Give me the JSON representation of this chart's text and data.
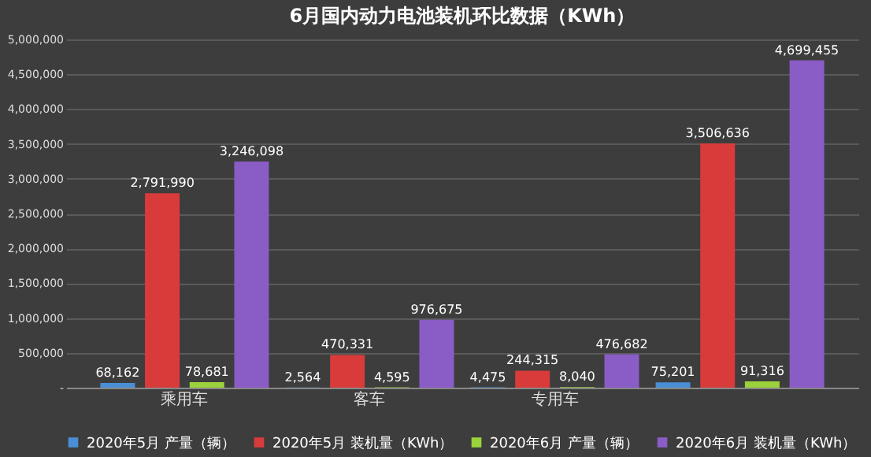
{
  "chart_data": {
    "type": "bar",
    "title": "6月国内动力电池装机环比数据（KWh）",
    "categories": [
      "乘用车",
      "客车",
      "专用车",
      null
    ],
    "series": [
      {
        "name": "2020年5月 产量（辆）",
        "color": "#4a8fd6",
        "values": [
          68162,
          2564,
          4475,
          75201
        ],
        "value_labels": [
          "68,162",
          "2,564",
          "4,475",
          "75,201"
        ]
      },
      {
        "name": "2020年5月 装机量（KWh）",
        "color": "#d93b3b",
        "values": [
          2791990,
          470331,
          244315,
          3506636
        ],
        "value_labels": [
          "2,791,990",
          "470,331",
          "244,315",
          "3,506,636"
        ]
      },
      {
        "name": "2020年6月 产量（辆）",
        "color": "#9bd23c",
        "values": [
          78681,
          4595,
          8040,
          91316
        ],
        "value_labels": [
          "78,681",
          "4,595",
          "8,040",
          "91,316"
        ]
      },
      {
        "name": "2020年6月 装机量（KWh）",
        "color": "#8a5cc6",
        "values": [
          3246098,
          976675,
          476682,
          4699455
        ],
        "value_labels": [
          "3,246,098",
          "976,675",
          "476,682",
          "4,699,455"
        ]
      }
    ],
    "ylim": [
      0,
      5000000
    ],
    "yticks": [
      {
        "value": 0,
        "label": "-"
      },
      {
        "value": 500000,
        "label": "500,000"
      },
      {
        "value": 1000000,
        "label": "1,000,000"
      },
      {
        "value": 1500000,
        "label": "1,500,000"
      },
      {
        "value": 2000000,
        "label": "2,000,000"
      },
      {
        "value": 2500000,
        "label": "2,500,000"
      },
      {
        "value": 3000000,
        "label": "3,000,000"
      },
      {
        "value": 3500000,
        "label": "3,500,000"
      },
      {
        "value": 4000000,
        "label": "4,000,000"
      },
      {
        "value": 4500000,
        "label": "4,500,000"
      },
      {
        "value": 5000000,
        "label": "5,000,000"
      }
    ],
    "grid": "y",
    "legend": "bottom"
  }
}
